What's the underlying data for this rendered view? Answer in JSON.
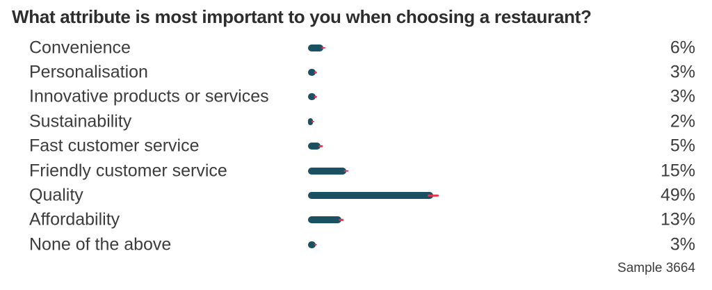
{
  "title": "What attribute is most important to you when choosing a restaurant?",
  "sample": "Sample 3664",
  "colors": {
    "bar": "#1a5162",
    "error_bar": "#ea3348",
    "title": "#2d2d2d",
    "text": "#3c3c3c",
    "background": "#ffffff"
  },
  "chart_data": {
    "type": "bar",
    "orientation": "horizontal",
    "title": "What attribute is most important to you when choosing a restaurant?",
    "categories": [
      "Convenience",
      "Personalisation",
      "Innovative products or services",
      "Sustainability",
      "Fast customer service",
      "Friendly customer service",
      "Quality",
      "Affordability",
      "None of the above"
    ],
    "values": [
      6,
      3,
      3,
      2,
      5,
      15,
      49,
      13,
      3
    ],
    "value_labels": [
      "6%",
      "3%",
      "3%",
      "2%",
      "5%",
      "15%",
      "49%",
      "13%",
      "3%"
    ],
    "errors": [
      0.8,
      0.6,
      0.6,
      0.4,
      0.7,
      1.0,
      2.2,
      1.0,
      0.6
    ],
    "unit": "%",
    "xlim": [
      0,
      52
    ],
    "grid": false,
    "legend": false,
    "value_labels_position": "right-aligned",
    "category_labels_position": "left",
    "annotation": "Sample 3664"
  }
}
